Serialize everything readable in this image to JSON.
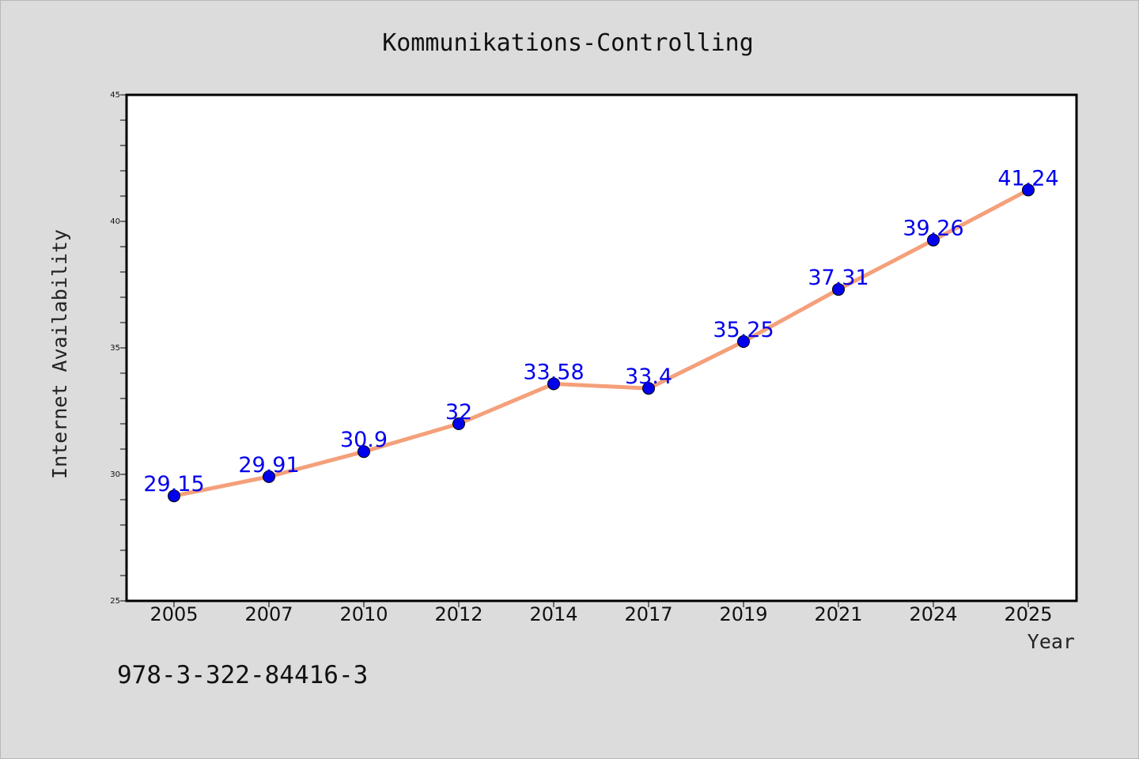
{
  "chart_data": {
    "type": "line",
    "title": "Kommunikations-Controlling",
    "xlabel": "Year",
    "ylabel": "Internet Availability",
    "categories": [
      "2005",
      "2007",
      "2010",
      "2012",
      "2014",
      "2017",
      "2019",
      "2021",
      "2024",
      "2025"
    ],
    "series": [
      {
        "values": [
          29.15,
          29.91,
          30.9,
          32,
          33.58,
          33.4,
          35.25,
          37.31,
          39.26,
          41.24
        ],
        "data_labels": [
          "29.15",
          "29.91",
          "30.9",
          "32",
          "33.58",
          "33.4",
          "35.25",
          "37.31",
          "39.26",
          "41.24"
        ],
        "line_color": "#f4a07a",
        "marker_color": "#0000ee"
      }
    ],
    "ylim": [
      25,
      45
    ],
    "yticks": [
      "25",
      "30",
      "35",
      "40",
      "45"
    ],
    "y_minor_step": 1,
    "grid": false,
    "legend": "none"
  },
  "annotation": "978-3-322-84416-3",
  "colors": {
    "background": "#dcdcdc",
    "plot_background": "#ffffff",
    "axis": "#000000",
    "line": "#f4a07a",
    "marker": "#0000ee",
    "data_label": "#0000ee"
  }
}
